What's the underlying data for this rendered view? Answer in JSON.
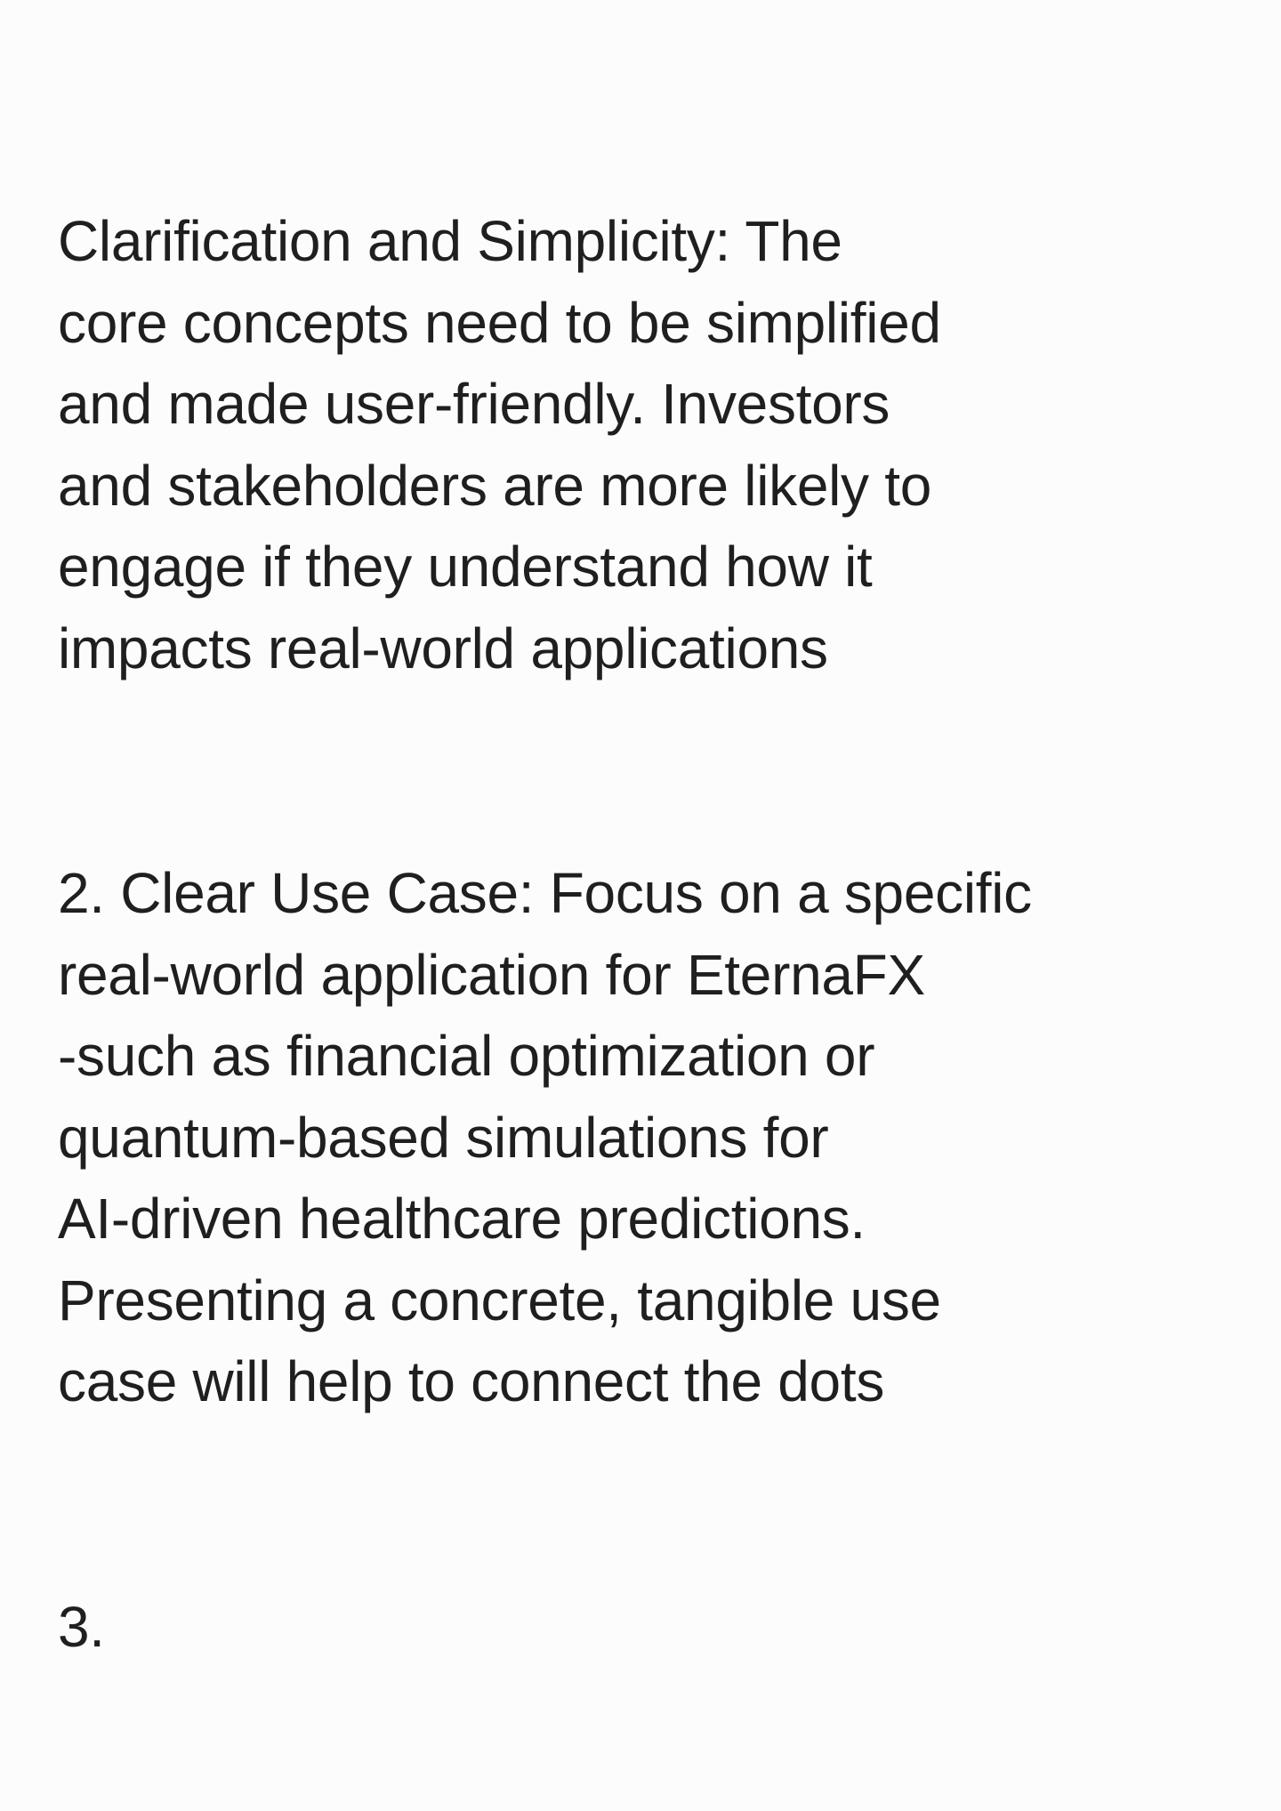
{
  "note": {
    "paragraphs": [
      {
        "lines": [
          "Clarification and Simplicity: The",
          "core concepts need to be simplified",
          "and made user-friendly. Investors",
          "and stakeholders are more likely to",
          "engage if they understand how it",
          "impacts real-world applications"
        ]
      },
      {
        "lines": [
          "2. Clear Use Case: Focus on a specific",
          "real-world application for EternaFX",
          "-such as financial optimization or",
          "quantum-based simulations for",
          "AI-driven healthcare predictions.",
          "Presenting a concrete, tangible use",
          "case will help to connect the dots"
        ]
      },
      {
        "lines": [
          "3."
        ]
      }
    ]
  }
}
